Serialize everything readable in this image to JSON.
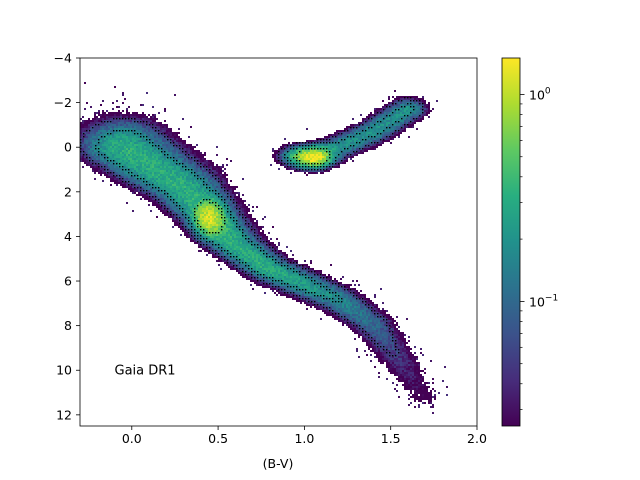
{
  "chart_data": {
    "type": "heatmap",
    "title": "",
    "xlabel": "(B-V)",
    "ylabel": "",
    "xlim": [
      -0.3,
      2.0
    ],
    "ylim": [
      12.5,
      -4
    ],
    "y_inverted": true,
    "x_ticks": [
      0.0,
      0.5,
      1.0,
      1.5,
      2.0
    ],
    "x_tick_labels": [
      "0.0",
      "0.5",
      "1.0",
      "1.5",
      "2.0"
    ],
    "y_ticks": [
      -4,
      -2,
      0,
      2,
      4,
      6,
      8,
      10,
      12
    ],
    "y_tick_labels": [
      "−4",
      "−2",
      "0",
      "2",
      "4",
      "6",
      "8",
      "10",
      "12"
    ],
    "annotation": "Gaia DR1",
    "colorbar": {
      "colormap": "viridis",
      "scale": "log",
      "range": [
        0.025,
        1.5
      ],
      "major_ticks": [
        0.1,
        1.0
      ],
      "major_tick_labels": [
        "10",
        "10"
      ],
      "major_tick_exponents": [
        "−1",
        "0"
      ],
      "minor_ticks": [
        0.03,
        0.04,
        0.05,
        0.06,
        0.07,
        0.08,
        0.09,
        0.2,
        0.3,
        0.4,
        0.5,
        0.6,
        0.7,
        0.8,
        0.9
      ]
    },
    "density_structure": {
      "main_sequence_ridge": [
        {
          "x": -0.05,
          "y": 0.0
        },
        {
          "x": 0.1,
          "y": 0.8
        },
        {
          "x": 0.3,
          "y": 1.8
        },
        {
          "x": 0.45,
          "y": 3.1
        },
        {
          "x": 0.6,
          "y": 4.4
        },
        {
          "x": 0.8,
          "y": 5.5
        },
        {
          "x": 1.0,
          "y": 6.2
        },
        {
          "x": 1.2,
          "y": 6.9
        },
        {
          "x": 1.4,
          "y": 8.0
        },
        {
          "x": 1.55,
          "y": 9.6
        },
        {
          "x": 1.7,
          "y": 11.3
        }
      ],
      "giant_branch_ridge": [
        {
          "x": 0.95,
          "y": 0.4
        },
        {
          "x": 1.05,
          "y": 0.45
        },
        {
          "x": 1.2,
          "y": 0.0
        },
        {
          "x": 1.4,
          "y": -0.7
        },
        {
          "x": 1.6,
          "y": -1.7
        }
      ],
      "peaks": [
        {
          "name": "red clump",
          "x": 1.05,
          "y": 0.45,
          "density": 1.3
        },
        {
          "name": "turnoff",
          "x": 0.45,
          "y": 3.2,
          "density": 0.9
        }
      ],
      "density_range": [
        0.03,
        1.5
      ]
    }
  }
}
